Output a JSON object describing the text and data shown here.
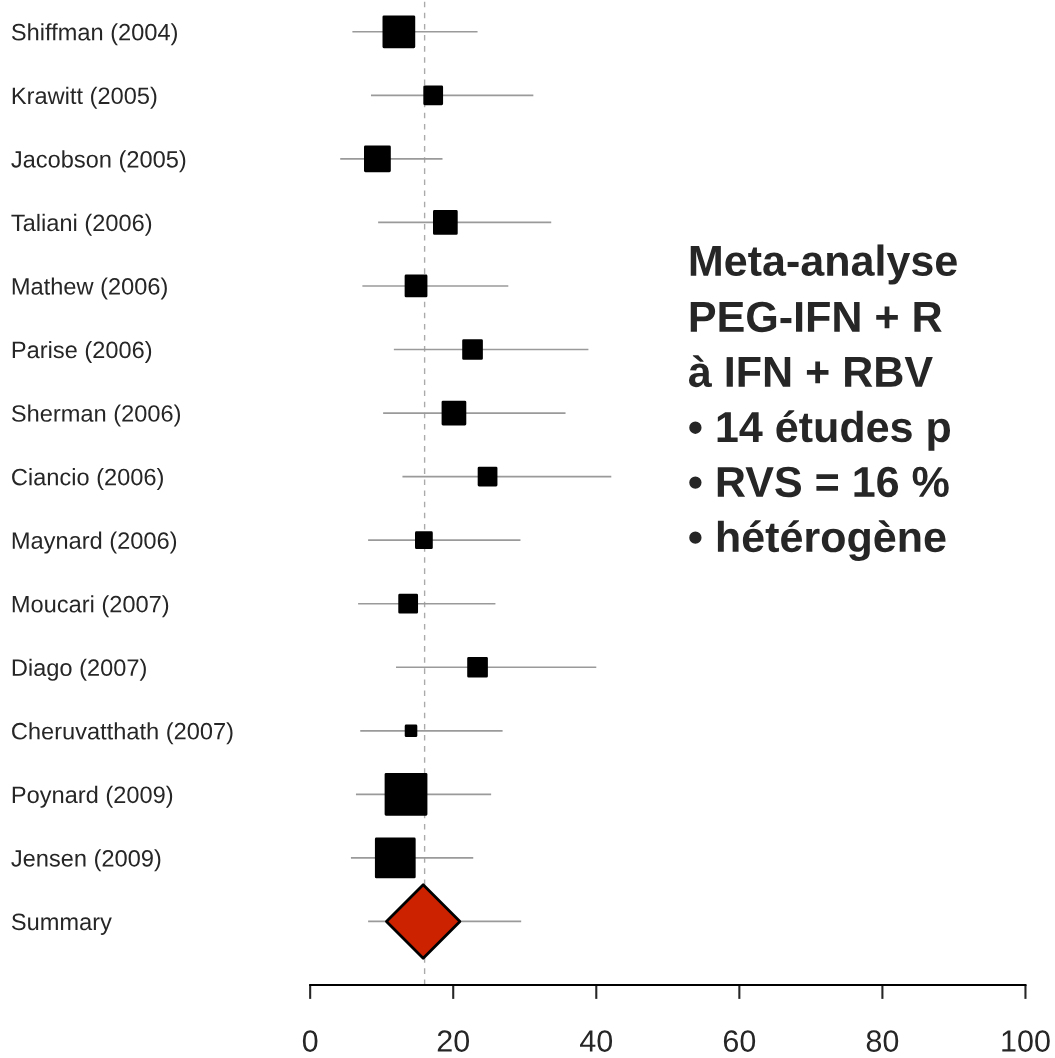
{
  "chart_data": {
    "type": "bubble",
    "orientation": "horizontal",
    "marker": "square",
    "categories": [
      "Shiffman (2004)",
      "Krawitt (2005)",
      "Jacobson (2005)",
      "Taliani (2006)",
      "Mathew (2006)",
      "Parise (2006)",
      "Sherman (2006)",
      "Ciancio (2006)",
      "Maynard (2006)",
      "Moucari (2007)",
      "Diago (2007)",
      "Cheruvatthath (2007)",
      "Poynard (2009)",
      "Jensen (2009)",
      "Summary"
    ],
    "xlim": [
      0,
      100
    ],
    "xticks": [
      0,
      20,
      40,
      60,
      80,
      100
    ],
    "ref_lines": [
      {
        "axis": "x",
        "value": 16,
        "color": "#aaaaaa",
        "line_style": "dashed"
      }
    ],
    "annotations": [
      "Meta-analyse",
      "PEG-IFN + R",
      "à IFN + RBV",
      "• 14 études p",
      "• RVS = 16 %",
      "• hétérogène"
    ],
    "series": [
      {
        "color": "#000000",
        "values": [
          12.4,
          17.2,
          9.4,
          18.9,
          14.8,
          22.7,
          20.1,
          24.8,
          15.9,
          13.7,
          23.4,
          14.1,
          13.4,
          11.9,
          null
        ],
        "errors": [
          [
            5.9,
            23.4
          ],
          [
            8.5,
            31.2
          ],
          [
            4.2,
            18.5
          ],
          [
            9.5,
            33.7
          ],
          [
            7.3,
            27.7
          ],
          [
            11.7,
            38.9
          ],
          [
            10.2,
            35.7
          ],
          [
            12.9,
            42.1
          ],
          [
            8.1,
            29.4
          ],
          [
            6.7,
            25.9
          ],
          [
            12.0,
            40.0
          ],
          [
            7.0,
            26.9
          ],
          [
            6.4,
            25.3
          ],
          [
            5.7,
            22.8
          ],
          null
        ],
        "sizes": [
          0.56,
          0.18,
          0.36,
          0.3,
          0.25,
          0.2,
          0.3,
          0.18,
          0.14,
          0.18,
          0.2,
          0.06,
          1,
          0.9,
          null
        ]
      },
      {
        "type": "scatter",
        "marker": "diamond",
        "color": "#cc2200",
        "values": [
          null,
          null,
          null,
          null,
          null,
          null,
          null,
          null,
          null,
          null,
          null,
          null,
          null,
          null,
          15.8
        ],
        "errors": [
          null,
          null,
          null,
          null,
          null,
          null,
          null,
          null,
          null,
          null,
          null,
          null,
          null,
          null,
          [
            8.1,
            29.5
          ]
        ]
      }
    ]
  }
}
